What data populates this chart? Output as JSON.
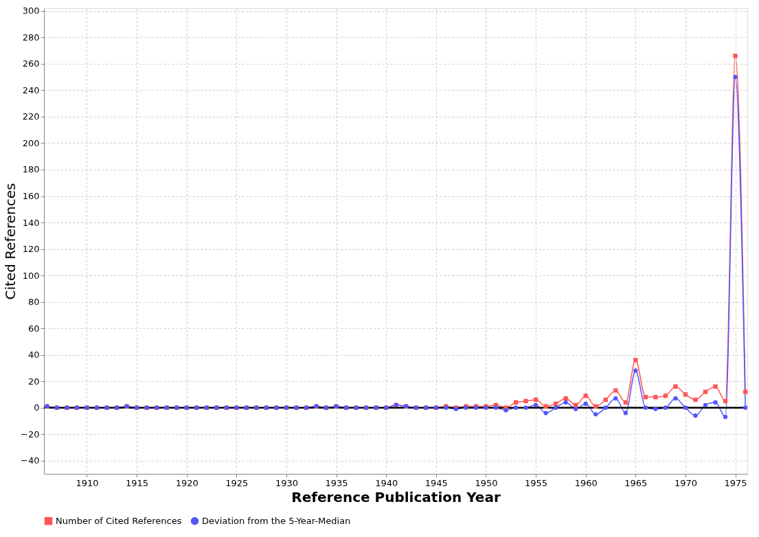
{
  "chart_data": {
    "type": "line",
    "xlabel": "Reference Publication Year",
    "ylabel": "Cited References",
    "x": [
      1906,
      1907,
      1908,
      1909,
      1910,
      1911,
      1912,
      1913,
      1914,
      1915,
      1916,
      1917,
      1918,
      1919,
      1920,
      1921,
      1922,
      1923,
      1924,
      1925,
      1926,
      1927,
      1928,
      1929,
      1930,
      1931,
      1932,
      1933,
      1934,
      1935,
      1936,
      1937,
      1938,
      1939,
      1940,
      1941,
      1942,
      1943,
      1944,
      1945,
      1946,
      1947,
      1948,
      1949,
      1950,
      1951,
      1952,
      1953,
      1954,
      1955,
      1956,
      1957,
      1958,
      1959,
      1960,
      1961,
      1962,
      1963,
      1964,
      1965,
      1966,
      1967,
      1968,
      1969,
      1970,
      1971,
      1972,
      1973,
      1974,
      1975,
      1976
    ],
    "series": [
      {
        "name": "Number of Cited References",
        "color": "#ff5555",
        "marker": "square",
        "values": [
          1,
          0,
          0,
          0,
          0,
          0,
          0,
          0,
          1,
          0,
          0,
          0,
          0,
          0,
          0,
          0,
          0,
          0,
          0,
          0,
          0,
          0,
          0,
          0,
          0,
          0,
          0,
          1,
          0,
          1,
          0,
          0,
          0,
          0,
          0,
          2,
          1,
          0,
          0,
          0,
          1,
          0,
          1,
          1,
          1,
          2,
          0,
          4,
          5,
          6,
          1,
          3,
          7,
          2,
          9,
          1,
          6,
          13,
          4,
          36,
          8,
          8,
          9,
          16,
          10,
          6,
          12,
          16,
          5,
          266,
          12
        ]
      },
      {
        "name": "Deviation from the 5-Year-Median",
        "color": "#5555ff",
        "marker": "circle",
        "values": [
          1,
          0,
          0,
          0,
          0,
          0,
          0,
          0,
          1,
          0,
          0,
          0,
          0,
          0,
          0,
          0,
          0,
          0,
          0,
          0,
          0,
          0,
          0,
          0,
          0,
          0,
          0,
          1,
          0,
          1,
          0,
          0,
          0,
          0,
          0,
          2,
          1,
          0,
          0,
          0,
          0,
          -1,
          0,
          0,
          0,
          0,
          -2,
          0,
          0,
          2,
          -4,
          0,
          4,
          -1,
          3,
          -5,
          0,
          7,
          -4,
          28,
          0,
          -1,
          0,
          7,
          0,
          -6,
          2,
          4,
          -7,
          250,
          0
        ]
      }
    ],
    "xlim": [
      1905.7,
      1976.2
    ],
    "ylim": [
      -50,
      302
    ],
    "xticks": [
      1910,
      1915,
      1920,
      1925,
      1930,
      1935,
      1940,
      1945,
      1950,
      1955,
      1960,
      1965,
      1970,
      1975
    ],
    "yticks": [
      -40,
      -20,
      0,
      20,
      40,
      60,
      80,
      100,
      120,
      140,
      160,
      180,
      200,
      220,
      240,
      260,
      280,
      300
    ],
    "ref_lines": [
      {
        "axis": "y",
        "value": 0,
        "color": "#000000",
        "line_style": "solid"
      }
    ],
    "grid": true,
    "legend": "bottom",
    "line_style": "solid"
  }
}
